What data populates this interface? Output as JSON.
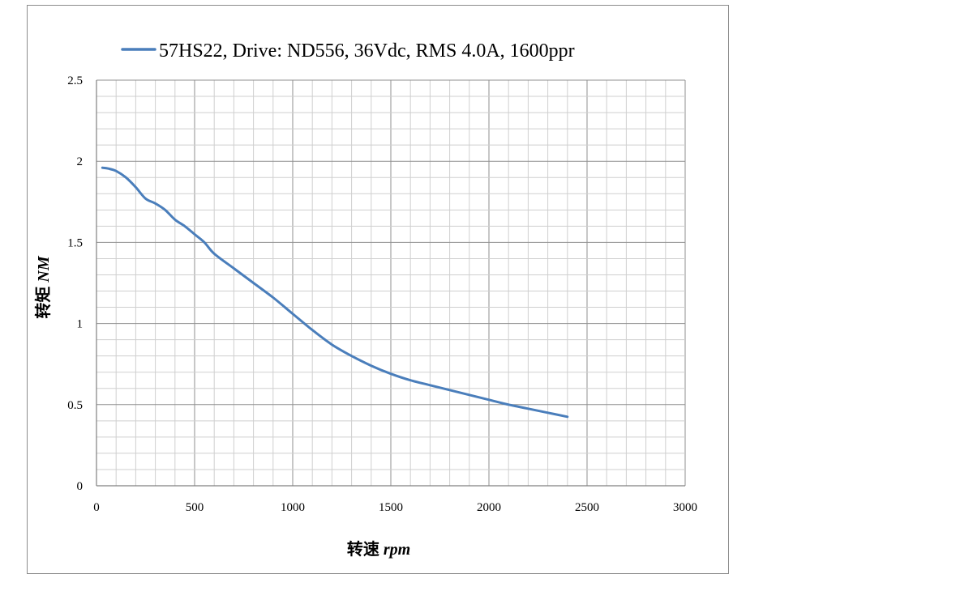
{
  "chart_data": {
    "type": "line",
    "series": [
      {
        "name": "57HS22, Drive: ND556, 36Vdc, RMS 4.0A, 1600ppr",
        "color": "#4a7ebb",
        "x": [
          30,
          60,
          100,
          150,
          200,
          250,
          300,
          350,
          400,
          450,
          500,
          550,
          600,
          700,
          800,
          900,
          1000,
          1100,
          1200,
          1300,
          1400,
          1500,
          1600,
          1700,
          1800,
          1900,
          2000,
          2100,
          2200,
          2300,
          2400
        ],
        "y": [
          1.96,
          1.955,
          1.94,
          1.9,
          1.84,
          1.77,
          1.74,
          1.7,
          1.64,
          1.6,
          1.55,
          1.5,
          1.43,
          1.34,
          1.25,
          1.16,
          1.06,
          0.96,
          0.87,
          0.8,
          0.74,
          0.69,
          0.65,
          0.62,
          0.59,
          0.56,
          0.53,
          0.5,
          0.475,
          0.45,
          0.425
        ]
      }
    ],
    "xlabel": "转速",
    "xlabel_unit": "rpm",
    "ylabel": "转矩",
    "ylabel_unit": "NM",
    "xlim": [
      0,
      3000
    ],
    "ylim": [
      0,
      2.5
    ],
    "xticks": [
      "0",
      "500",
      "1000",
      "1500",
      "2000",
      "2500",
      "3000"
    ],
    "yticks": [
      "0",
      "0.5",
      "1",
      "1.5",
      "2",
      "2.5"
    ],
    "grid": true,
    "legend_position": "top"
  }
}
